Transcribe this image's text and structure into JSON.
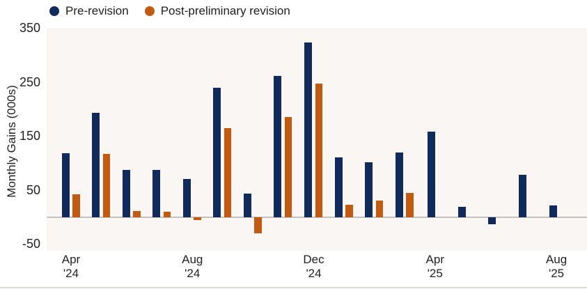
{
  "legend": {
    "items": [
      {
        "label": "Pre-revision"
      },
      {
        "label": "Post-preliminary revision"
      }
    ]
  },
  "y_axis": {
    "title": "Monthly Gains (000s)",
    "tick_labels": [
      "350",
      "250",
      "150",
      "50",
      "-50"
    ],
    "tick_values": [
      350,
      250,
      150,
      50,
      -50
    ]
  },
  "x_axis": {
    "tick_labels": [
      {
        "line1": "Apr",
        "line2": "'24",
        "month": "Apr '24"
      },
      {
        "line1": "Aug",
        "line2": "'24",
        "month": "Aug '24"
      },
      {
        "line1": "Dec",
        "line2": "'24",
        "month": "Dec '24"
      },
      {
        "line1": "Apr",
        "line2": "'25",
        "month": "Apr '25"
      },
      {
        "line1": "Aug",
        "line2": "'25",
        "month": "Aug '25"
      }
    ]
  },
  "chart_data": {
    "type": "bar",
    "title": "",
    "xlabel": "",
    "ylabel": "Monthly Gains (000s)",
    "categories": [
      "Apr '24",
      "May '24",
      "Jun '24",
      "Jul '24",
      "Aug '24",
      "Sep '24",
      "Oct '24",
      "Nov '24",
      "Dec '24",
      "Jan '25",
      "Feb '25",
      "Mar '25",
      "Apr '25",
      "May '25",
      "Jun '25",
      "Jul '25",
      "Aug '25"
    ],
    "series": [
      {
        "name": "Pre-revision",
        "color": "#102a5c",
        "values": [
          118,
          193,
          87,
          88,
          71,
          240,
          44,
          261,
          323,
          111,
          102,
          120,
          158,
          19,
          -13,
          79,
          22
        ]
      },
      {
        "name": "Post-preliminary revision",
        "color": "#c35a11",
        "values": [
          42,
          117,
          11,
          10,
          -5,
          165,
          -30,
          186,
          247,
          23,
          30,
          45,
          null,
          null,
          null,
          null,
          null
        ]
      }
    ],
    "yticks": [
      350,
      250,
      150,
      50,
      -50
    ],
    "ylim": [
      -62,
      352
    ],
    "grid": false,
    "legend_position": "top-left",
    "x_shown_tick_labels": [
      "Apr '24",
      "Aug '24",
      "Dec '24",
      "Apr '25",
      "Aug '25"
    ]
  },
  "colors": {
    "pre_revision": "#102a5c",
    "post_revision": "#c35a11",
    "plot_background": "#f9f6f3",
    "zero_line": "#c3c1bf",
    "text": "#1e1e1e",
    "bottom_border": "#dbd8d5"
  }
}
